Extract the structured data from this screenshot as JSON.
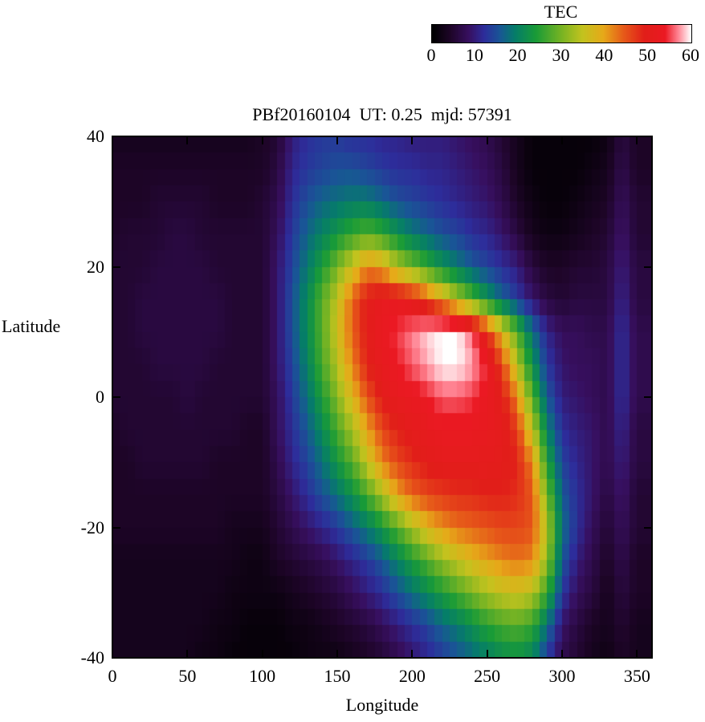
{
  "chart_data": {
    "type": "heatmap",
    "title": "PBf20160104  UT: 0.25  mjd: 57391",
    "xlabel": "Longitude",
    "ylabel": "Latitude",
    "xlim": [
      0,
      360
    ],
    "ylim": [
      -40,
      40
    ],
    "xticks": [
      0,
      50,
      100,
      150,
      200,
      250,
      300,
      350
    ],
    "yticks": [
      40,
      20,
      0,
      -20,
      -40
    ],
    "colorbar_title": "TEC",
    "colorbar_ticks": [
      0,
      10,
      20,
      30,
      40,
      50,
      60
    ],
    "zmin": 0,
    "zmax": 60,
    "lon_start": 0,
    "lon_step": 10,
    "lat_start": 40,
    "lat_step": -5,
    "values": [
      [
        3,
        3,
        3,
        3,
        3,
        3,
        3,
        3,
        3,
        3,
        4,
        5,
        10,
        12,
        13,
        13,
        12,
        12,
        11,
        11,
        10,
        10,
        10,
        9,
        8,
        7,
        5,
        3,
        1,
        1,
        1,
        1,
        1,
        2,
        6,
        4
      ],
      [
        4,
        4,
        4,
        4,
        4,
        4,
        4,
        4,
        4,
        4,
        4,
        6,
        11,
        13,
        14,
        15,
        15,
        14,
        13,
        12,
        12,
        11,
        11,
        10,
        9,
        8,
        6,
        3,
        1,
        1,
        1,
        1,
        2,
        3,
        7,
        4
      ],
      [
        4,
        4,
        4,
        5,
        5,
        5,
        5,
        4,
        4,
        4,
        5,
        7,
        12,
        15,
        17,
        18,
        19,
        19,
        17,
        15,
        14,
        13,
        12,
        11,
        10,
        9,
        7,
        4,
        2,
        1,
        1,
        2,
        3,
        4,
        8,
        5
      ],
      [
        4,
        5,
        5,
        5,
        6,
        6,
        5,
        5,
        5,
        5,
        5,
        8,
        13,
        17,
        20,
        23,
        26,
        28,
        26,
        22,
        19,
        17,
        15,
        14,
        12,
        11,
        9,
        6,
        3,
        2,
        2,
        3,
        4,
        5,
        9,
        5
      ],
      [
        5,
        5,
        5,
        6,
        6,
        6,
        6,
        5,
        5,
        5,
        5,
        9,
        14,
        19,
        24,
        30,
        36,
        42,
        40,
        34,
        30,
        26,
        22,
        19,
        16,
        14,
        12,
        10,
        6,
        4,
        4,
        5,
        5,
        6,
        10,
        6
      ],
      [
        5,
        5,
        6,
        6,
        6,
        6,
        6,
        6,
        5,
        5,
        5,
        9,
        15,
        21,
        28,
        35,
        44,
        50,
        52,
        52,
        50,
        46,
        40,
        34,
        28,
        22,
        17,
        13,
        9,
        6,
        5,
        6,
        6,
        6,
        11,
        6
      ],
      [
        5,
        5,
        6,
        6,
        6,
        6,
        6,
        6,
        5,
        5,
        5,
        9,
        15,
        21,
        28,
        36,
        44,
        50,
        53,
        55,
        57,
        59,
        60,
        60,
        56,
        48,
        38,
        28,
        18,
        11,
        8,
        8,
        7,
        7,
        12,
        7
      ],
      [
        5,
        5,
        5,
        6,
        6,
        6,
        6,
        5,
        5,
        5,
        5,
        9,
        14,
        20,
        27,
        34,
        42,
        49,
        52,
        54,
        56,
        58,
        60,
        60,
        58,
        54,
        46,
        34,
        22,
        13,
        9,
        8,
        8,
        7,
        12,
        7
      ],
      [
        5,
        5,
        5,
        5,
        5,
        6,
        5,
        5,
        5,
        5,
        5,
        8,
        13,
        18,
        24,
        31,
        38,
        45,
        50,
        52,
        53,
        54,
        56,
        56,
        55,
        53,
        50,
        42,
        28,
        16,
        10,
        9,
        8,
        7,
        12,
        7
      ],
      [
        4,
        5,
        5,
        5,
        5,
        5,
        5,
        5,
        5,
        4,
        4,
        8,
        12,
        16,
        21,
        27,
        33,
        40,
        46,
        49,
        51,
        52,
        53,
        53,
        53,
        52,
        51,
        47,
        35,
        20,
        12,
        10,
        9,
        7,
        11,
        6
      ],
      [
        4,
        4,
        5,
        5,
        5,
        5,
        5,
        4,
        4,
        4,
        4,
        7,
        11,
        14,
        18,
        23,
        28,
        35,
        42,
        46,
        48,
        50,
        51,
        51,
        51,
        51,
        50,
        49,
        42,
        25,
        14,
        11,
        9,
        7,
        10,
        6
      ],
      [
        4,
        4,
        4,
        4,
        4,
        4,
        4,
        4,
        4,
        4,
        4,
        6,
        9,
        12,
        15,
        18,
        22,
        27,
        33,
        40,
        44,
        46,
        47,
        48,
        48,
        49,
        49,
        48,
        45,
        30,
        16,
        12,
        9,
        6,
        9,
        5
      ],
      [
        4,
        4,
        4,
        4,
        4,
        4,
        4,
        4,
        3,
        3,
        3,
        5,
        7,
        9,
        11,
        13,
        16,
        19,
        23,
        28,
        33,
        38,
        41,
        43,
        44,
        45,
        46,
        46,
        45,
        34,
        18,
        12,
        8,
        5,
        8,
        5
      ],
      [
        3,
        3,
        3,
        3,
        3,
        3,
        3,
        3,
        3,
        2,
        2,
        4,
        5,
        6,
        7,
        9,
        11,
        13,
        16,
        20,
        24,
        28,
        32,
        35,
        38,
        40,
        42,
        43,
        42,
        32,
        16,
        10,
        7,
        4,
        7,
        4
      ],
      [
        3,
        3,
        3,
        3,
        3,
        3,
        3,
        3,
        2,
        2,
        2,
        2,
        3,
        4,
        5,
        6,
        8,
        10,
        12,
        15,
        18,
        21,
        24,
        27,
        30,
        33,
        35,
        36,
        34,
        26,
        13,
        8,
        6,
        3,
        6,
        4
      ],
      [
        3,
        3,
        3,
        3,
        3,
        3,
        3,
        2,
        2,
        1,
        1,
        1,
        2,
        2,
        3,
        4,
        5,
        6,
        8,
        10,
        12,
        14,
        17,
        19,
        22,
        25,
        27,
        28,
        26,
        18,
        9,
        6,
        4,
        3,
        5,
        3
      ],
      [
        3,
        3,
        3,
        3,
        3,
        3,
        2,
        2,
        1,
        1,
        1,
        1,
        1,
        2,
        2,
        2,
        3,
        4,
        5,
        7,
        9,
        11,
        13,
        15,
        17,
        19,
        21,
        22,
        20,
        13,
        7,
        5,
        3,
        2,
        4,
        3
      ]
    ],
    "palette": [
      [
        0.0,
        0,
        0,
        0
      ],
      [
        0.07,
        30,
        5,
        40
      ],
      [
        0.14,
        55,
        15,
        95
      ],
      [
        0.2,
        45,
        45,
        155
      ],
      [
        0.26,
        25,
        85,
        150
      ],
      [
        0.32,
        5,
        125,
        105
      ],
      [
        0.4,
        25,
        155,
        55
      ],
      [
        0.5,
        120,
        180,
        35
      ],
      [
        0.58,
        195,
        195,
        30
      ],
      [
        0.66,
        230,
        170,
        25
      ],
      [
        0.74,
        230,
        90,
        25
      ],
      [
        0.82,
        225,
        30,
        25
      ],
      [
        0.9,
        235,
        25,
        35
      ],
      [
        0.95,
        255,
        130,
        145
      ],
      [
        1.0,
        255,
        255,
        255
      ]
    ]
  }
}
